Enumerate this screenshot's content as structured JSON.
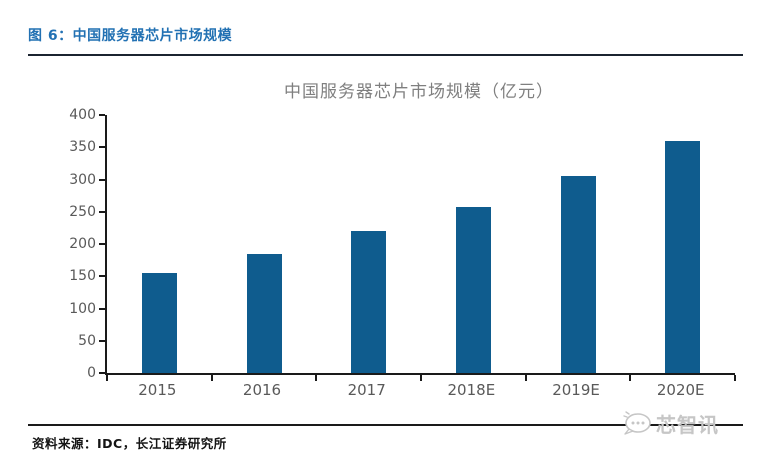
{
  "page": {
    "figure_label": "图 6：中国服务器芯片市场规模",
    "source_note": "资料来源：IDC，长江证券研究所",
    "watermark_text": "芯智讯"
  },
  "colors": {
    "bar": "#0F5C8E",
    "figure_label": "#2271B3",
    "header_rule": "#1B2430",
    "axis": "#1A1A1A",
    "tick_label": "#595959",
    "chart_title": "#7F7F7F",
    "watermark": "#C6C6C6"
  },
  "chart_data": {
    "type": "bar",
    "title": "中国服务器芯片市场规模（亿元）",
    "categories": [
      "2015",
      "2016",
      "2017",
      "2018E",
      "2019E",
      "2020E"
    ],
    "values": [
      155,
      185,
      220,
      258,
      305,
      360
    ],
    "xlabel": "",
    "ylabel": "",
    "ylim": [
      0,
      400
    ],
    "ytick_step": 50,
    "grid": false,
    "legend_position": "none",
    "bar_color": "#0F5C8E"
  }
}
